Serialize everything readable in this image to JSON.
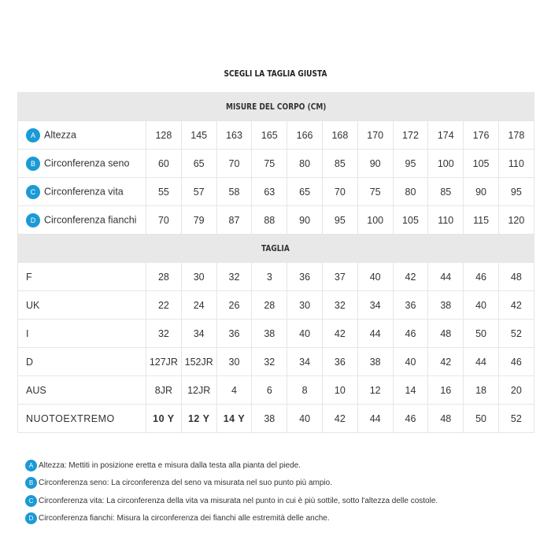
{
  "title": "SCEGLI LA TAGLIA GIUSTA",
  "accent": "#1a9ad6",
  "body_header": "MISURE DEL CORPO (CM)",
  "body_rows": [
    {
      "badge": "A",
      "label": "Altezza",
      "values": [
        "128",
        "145",
        "163",
        "165",
        "166",
        "168",
        "170",
        "172",
        "174",
        "176",
        "178"
      ]
    },
    {
      "badge": "B",
      "label": "Circonferenza seno",
      "values": [
        "60",
        "65",
        "70",
        "75",
        "80",
        "85",
        "90",
        "95",
        "100",
        "105",
        "110"
      ]
    },
    {
      "badge": "C",
      "label": "Circonferenza vita",
      "values": [
        "55",
        "57",
        "58",
        "63",
        "65",
        "70",
        "75",
        "80",
        "85",
        "90",
        "95"
      ]
    },
    {
      "badge": "D",
      "label": "Circonferenza fianchi",
      "values": [
        "70",
        "79",
        "87",
        "88",
        "90",
        "95",
        "100",
        "105",
        "110",
        "115",
        "120"
      ]
    }
  ],
  "size_header": "TAGLIA",
  "size_rows": [
    {
      "label": "F",
      "values": [
        "28",
        "30",
        "32",
        "3",
        "36",
        "37",
        "40",
        "42",
        "44",
        "46",
        "48"
      ]
    },
    {
      "label": "UK",
      "values": [
        "22",
        "24",
        "26",
        "28",
        "30",
        "32",
        "34",
        "36",
        "38",
        "40",
        "42"
      ]
    },
    {
      "label": "I",
      "values": [
        "32",
        "34",
        "36",
        "38",
        "40",
        "42",
        "44",
        "46",
        "48",
        "50",
        "52"
      ]
    },
    {
      "label": "D",
      "values": [
        "127JR",
        "152JR",
        "30",
        "32",
        "34",
        "36",
        "38",
        "40",
        "42",
        "44",
        "46"
      ]
    },
    {
      "label": "AUS",
      "values": [
        "8JR",
        "12JR",
        "4",
        "6",
        "8",
        "10",
        "12",
        "14",
        "16",
        "18",
        "20"
      ]
    },
    {
      "label": "NUOTOEXTREMO",
      "values": [
        "10 Y",
        "12 Y",
        "14 Y",
        "38",
        "40",
        "42",
        "44",
        "46",
        "48",
        "50",
        "52"
      ]
    }
  ],
  "notes": [
    {
      "badge": "A",
      "text": "Altezza: Mettiti in posizione eretta e misura dalla testa alla pianta del piede."
    },
    {
      "badge": "B",
      "text": "Circonferenza seno: La circonferenza del seno va misurata nel suo punto più ampio."
    },
    {
      "badge": "C",
      "text": "Circonferenza vita: La circonferenza della vita va misurata nel punto in cui è più sottile, sotto l'altezza delle costole."
    },
    {
      "badge": "D",
      "text": "Circonferenza fianchi: Misura la circonferenza dei fianchi alle estremità delle anche."
    }
  ]
}
